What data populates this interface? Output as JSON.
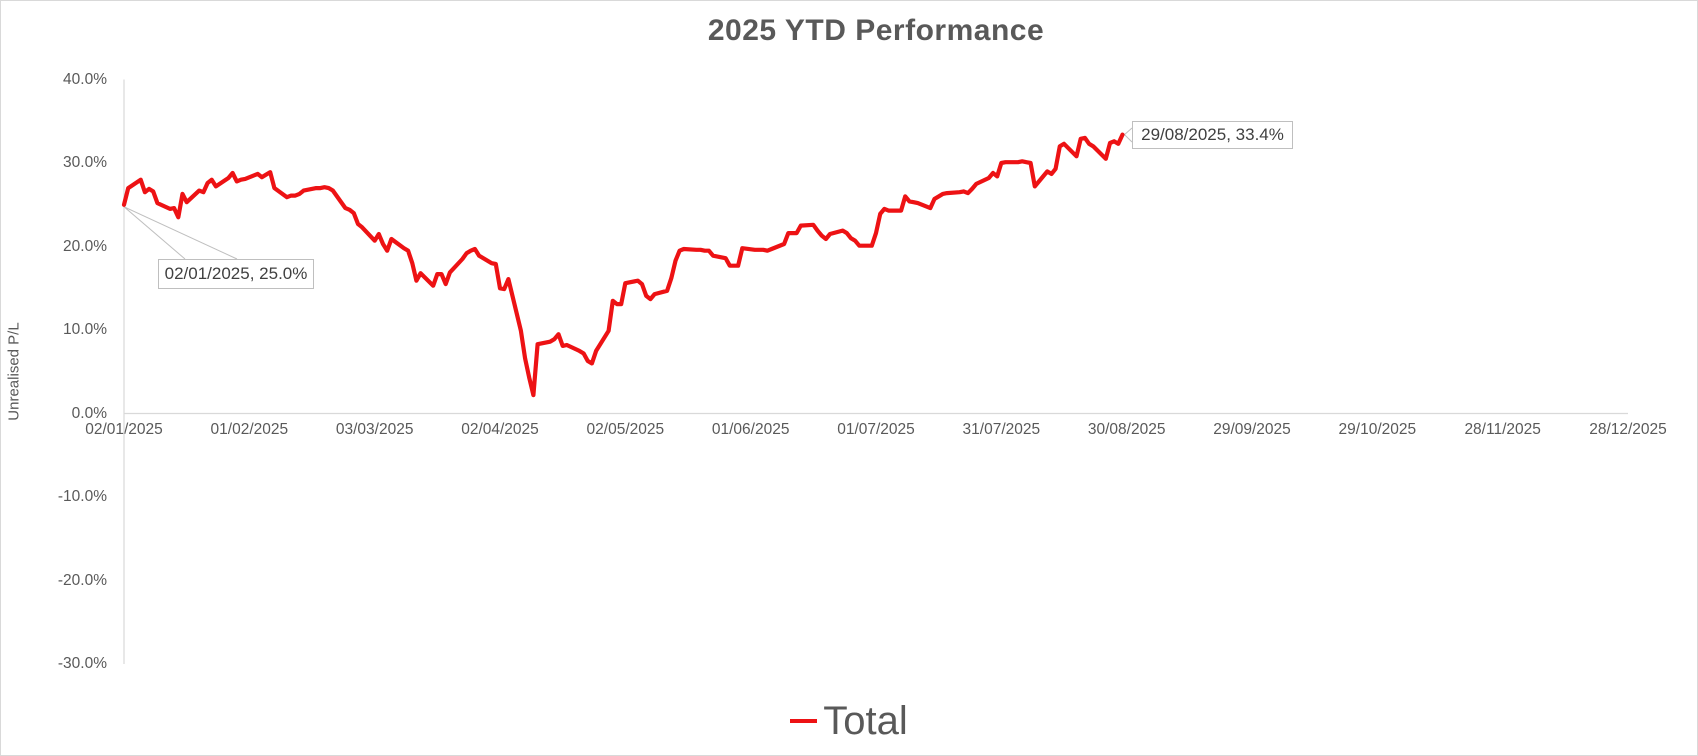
{
  "chart": {
    "title": "2025 YTD Performance",
    "y_axis": {
      "title": "Unrealised P/L",
      "labels": [
        "40.0%",
        "30.0%",
        "20.0%",
        "10.0%",
        "0.0%",
        "-10.0%",
        "-20.0%",
        "-30.0%"
      ]
    },
    "x_axis": {
      "labels": [
        "02/01/2025",
        "01/02/2025",
        "03/03/2025",
        "02/04/2025",
        "02/05/2025",
        "01/06/2025",
        "01/07/2025",
        "31/07/2025",
        "30/08/2025",
        "29/09/2025",
        "29/10/2025",
        "28/11/2025",
        "28/12/2025"
      ]
    },
    "legend": {
      "items": [
        {
          "label": "Total",
          "color": "#ed1214"
        }
      ]
    },
    "callouts": [
      {
        "text": "02/01/2025, 25.0%"
      },
      {
        "text": "29/08/2025, 33.4%"
      }
    ],
    "colors": {
      "text_gray": "#595959",
      "axis_line": "#d9d9d9",
      "callout_border": "#bfbfbf",
      "series_red": "#ed1214"
    }
  },
  "chart_data": {
    "type": "line",
    "title": "2025 YTD Performance",
    "xlabel": "",
    "ylabel": "Unrealised P/L",
    "ylim": [
      -30,
      40
    ],
    "y_ticks_percent": [
      40,
      30,
      20,
      10,
      0,
      -10,
      -20,
      -30
    ],
    "x_ticks": [
      "02/01/2025",
      "01/02/2025",
      "03/03/2025",
      "02/04/2025",
      "02/05/2025",
      "01/06/2025",
      "01/07/2025",
      "31/07/2025",
      "30/08/2025",
      "29/09/2025",
      "29/10/2025",
      "28/11/2025",
      "28/12/2025"
    ],
    "grid": false,
    "legend_position": "bottom",
    "annotations": [
      {
        "date": "02/01/2025",
        "value": 25.0,
        "label": "02/01/2025, 25.0%"
      },
      {
        "date": "29/08/2025",
        "value": 33.4,
        "label": "29/08/2025, 33.4%"
      }
    ],
    "series": [
      {
        "name": "Total",
        "color": "#ed1214",
        "points": [
          [
            "02/01/2025",
            25.0
          ],
          [
            "03/01/2025",
            27.0
          ],
          [
            "06/01/2025",
            28.0
          ],
          [
            "07/01/2025",
            26.5
          ],
          [
            "08/01/2025",
            26.9
          ],
          [
            "09/01/2025",
            26.6
          ],
          [
            "10/01/2025",
            25.2
          ],
          [
            "13/01/2025",
            24.5
          ],
          [
            "14/01/2025",
            24.6
          ],
          [
            "15/01/2025",
            23.5
          ],
          [
            "16/01/2025",
            26.3
          ],
          [
            "17/01/2025",
            25.3
          ],
          [
            "20/01/2025",
            26.7
          ],
          [
            "21/01/2025",
            26.5
          ],
          [
            "22/01/2025",
            27.6
          ],
          [
            "23/01/2025",
            28.0
          ],
          [
            "24/01/2025",
            27.2
          ],
          [
            "27/01/2025",
            28.2
          ],
          [
            "28/01/2025",
            28.8
          ],
          [
            "29/01/2025",
            27.8
          ],
          [
            "30/01/2025",
            28.0
          ],
          [
            "31/01/2025",
            28.1
          ],
          [
            "03/02/2025",
            28.7
          ],
          [
            "04/02/2025",
            28.3
          ],
          [
            "05/02/2025",
            28.6
          ],
          [
            "06/02/2025",
            28.9
          ],
          [
            "07/02/2025",
            27.0
          ],
          [
            "10/02/2025",
            25.9
          ],
          [
            "11/02/2025",
            26.1
          ],
          [
            "12/02/2025",
            26.1
          ],
          [
            "13/02/2025",
            26.3
          ],
          [
            "14/02/2025",
            26.7
          ],
          [
            "17/02/2025",
            27.0
          ],
          [
            "18/02/2025",
            27.0
          ],
          [
            "19/02/2025",
            27.1
          ],
          [
            "20/02/2025",
            27.0
          ],
          [
            "21/02/2025",
            26.7
          ],
          [
            "24/02/2025",
            24.6
          ],
          [
            "25/02/2025",
            24.4
          ],
          [
            "26/02/2025",
            24.0
          ],
          [
            "27/02/2025",
            22.7
          ],
          [
            "28/02/2025",
            22.3
          ],
          [
            "03/03/2025",
            20.7
          ],
          [
            "04/03/2025",
            21.5
          ],
          [
            "05/03/2025",
            20.3
          ],
          [
            "06/03/2025",
            19.5
          ],
          [
            "07/03/2025",
            20.9
          ],
          [
            "10/03/2025",
            19.8
          ],
          [
            "11/03/2025",
            19.5
          ],
          [
            "12/03/2025",
            18.0
          ],
          [
            "13/03/2025",
            15.9
          ],
          [
            "14/03/2025",
            16.8
          ],
          [
            "17/03/2025",
            15.3
          ],
          [
            "18/03/2025",
            16.7
          ],
          [
            "19/03/2025",
            16.7
          ],
          [
            "20/03/2025",
            15.5
          ],
          [
            "21/03/2025",
            16.9
          ],
          [
            "24/03/2025",
            18.5
          ],
          [
            "25/03/2025",
            19.2
          ],
          [
            "26/03/2025",
            19.5
          ],
          [
            "27/03/2025",
            19.7
          ],
          [
            "28/03/2025",
            18.9
          ],
          [
            "31/03/2025",
            18.0
          ],
          [
            "01/04/2025",
            17.9
          ],
          [
            "02/04/2025",
            15.0
          ],
          [
            "03/04/2025",
            14.9
          ],
          [
            "04/04/2025",
            16.1
          ],
          [
            "07/04/2025",
            9.9
          ],
          [
            "08/04/2025",
            6.6
          ],
          [
            "09/04/2025",
            4.3
          ],
          [
            "10/04/2025",
            2.2
          ],
          [
            "11/04/2025",
            8.3
          ],
          [
            "14/04/2025",
            8.6
          ],
          [
            "15/04/2025",
            8.9
          ],
          [
            "16/04/2025",
            9.5
          ],
          [
            "17/04/2025",
            8.1
          ],
          [
            "18/04/2025",
            8.2
          ],
          [
            "21/04/2025",
            7.5
          ],
          [
            "22/04/2025",
            7.2
          ],
          [
            "23/04/2025",
            6.3
          ],
          [
            "24/04/2025",
            6.0
          ],
          [
            "25/04/2025",
            7.5
          ],
          [
            "28/04/2025",
            9.9
          ],
          [
            "29/04/2025",
            13.5
          ],
          [
            "30/04/2025",
            13.1
          ],
          [
            "01/05/2025",
            13.1
          ],
          [
            "02/05/2025",
            15.6
          ],
          [
            "05/05/2025",
            15.9
          ],
          [
            "06/05/2025",
            15.5
          ],
          [
            "07/05/2025",
            14.1
          ],
          [
            "08/05/2025",
            13.7
          ],
          [
            "09/05/2025",
            14.3
          ],
          [
            "12/05/2025",
            14.7
          ],
          [
            "13/05/2025",
            16.2
          ],
          [
            "14/05/2025",
            18.3
          ],
          [
            "15/05/2025",
            19.5
          ],
          [
            "16/05/2025",
            19.7
          ],
          [
            "19/05/2025",
            19.6
          ],
          [
            "20/05/2025",
            19.6
          ],
          [
            "21/05/2025",
            19.5
          ],
          [
            "22/05/2025",
            19.5
          ],
          [
            "23/05/2025",
            18.9
          ],
          [
            "26/05/2025",
            18.6
          ],
          [
            "27/05/2025",
            17.7
          ],
          [
            "28/05/2025",
            17.7
          ],
          [
            "29/05/2025",
            17.7
          ],
          [
            "30/05/2025",
            19.8
          ],
          [
            "02/06/2025",
            19.6
          ],
          [
            "03/06/2025",
            19.6
          ],
          [
            "04/06/2025",
            19.6
          ],
          [
            "05/06/2025",
            19.5
          ],
          [
            "06/06/2025",
            19.7
          ],
          [
            "09/06/2025",
            20.3
          ],
          [
            "10/06/2025",
            21.6
          ],
          [
            "11/06/2025",
            21.6
          ],
          [
            "12/06/2025",
            21.6
          ],
          [
            "13/06/2025",
            22.5
          ],
          [
            "16/06/2025",
            22.6
          ],
          [
            "17/06/2025",
            21.9
          ],
          [
            "18/06/2025",
            21.3
          ],
          [
            "19/06/2025",
            20.9
          ],
          [
            "20/06/2025",
            21.5
          ],
          [
            "23/06/2025",
            21.9
          ],
          [
            "24/06/2025",
            21.6
          ],
          [
            "25/06/2025",
            21.0
          ],
          [
            "26/06/2025",
            20.7
          ],
          [
            "27/06/2025",
            20.1
          ],
          [
            "30/06/2025",
            20.1
          ],
          [
            "01/07/2025",
            21.6
          ],
          [
            "02/07/2025",
            23.9
          ],
          [
            "03/07/2025",
            24.5
          ],
          [
            "04/07/2025",
            24.3
          ],
          [
            "07/07/2025",
            24.3
          ],
          [
            "08/07/2025",
            26.0
          ],
          [
            "09/07/2025",
            25.4
          ],
          [
            "10/07/2025",
            25.3
          ],
          [
            "11/07/2025",
            25.2
          ],
          [
            "14/07/2025",
            24.6
          ],
          [
            "15/07/2025",
            25.7
          ],
          [
            "16/07/2025",
            26.0
          ],
          [
            "17/07/2025",
            26.3
          ],
          [
            "18/07/2025",
            26.4
          ],
          [
            "21/07/2025",
            26.5
          ],
          [
            "22/07/2025",
            26.6
          ],
          [
            "23/07/2025",
            26.4
          ],
          [
            "24/07/2025",
            26.9
          ],
          [
            "25/07/2025",
            27.5
          ],
          [
            "28/07/2025",
            28.2
          ],
          [
            "29/07/2025",
            28.8
          ],
          [
            "30/07/2025",
            28.4
          ],
          [
            "31/07/2025",
            30.0
          ],
          [
            "01/08/2025",
            30.1
          ],
          [
            "04/08/2025",
            30.1
          ],
          [
            "05/08/2025",
            30.2
          ],
          [
            "06/08/2025",
            30.1
          ],
          [
            "07/08/2025",
            30.0
          ],
          [
            "08/08/2025",
            27.2
          ],
          [
            "11/08/2025",
            29.0
          ],
          [
            "12/08/2025",
            28.7
          ],
          [
            "13/08/2025",
            29.3
          ],
          [
            "14/08/2025",
            32.0
          ],
          [
            "15/08/2025",
            32.3
          ],
          [
            "18/08/2025",
            30.8
          ],
          [
            "19/08/2025",
            32.9
          ],
          [
            "20/08/2025",
            33.0
          ],
          [
            "21/08/2025",
            32.3
          ],
          [
            "22/08/2025",
            32.0
          ],
          [
            "25/08/2025",
            30.5
          ],
          [
            "26/08/2025",
            32.4
          ],
          [
            "27/08/2025",
            32.6
          ],
          [
            "28/08/2025",
            32.3
          ],
          [
            "29/08/2025",
            33.4
          ]
        ]
      }
    ]
  }
}
